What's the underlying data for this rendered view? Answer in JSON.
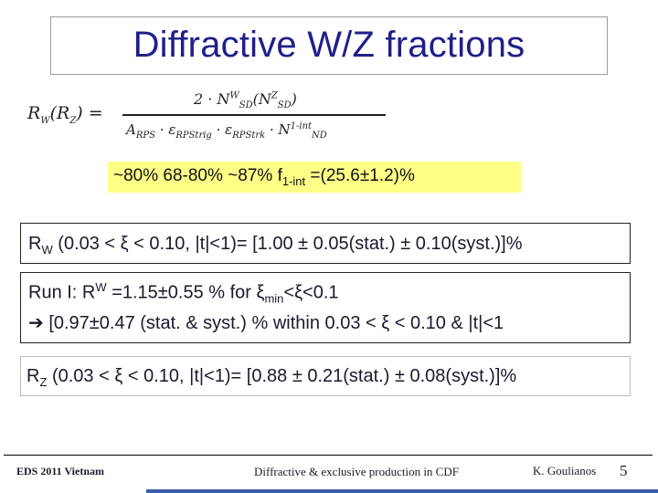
{
  "title": "Diffractive W/Z fractions",
  "formula": {
    "lhs": "R",
    "lhs_sub_w": "W",
    "lhs_sub_z": "Z",
    "numerator_prefix": "2 · N",
    "numerator_sup_w": "W",
    "numerator_sub": "SD",
    "numerator_sup_z": "Z",
    "numerator_sub2": "SD",
    "den_a": "A",
    "den_a_sub": "RPS",
    "den_e1": "· ε",
    "den_e1_sub": "RPStrig",
    "den_e2": "· ε",
    "den_e2_sub": "RPStrk",
    "den_n": "· N",
    "den_n_sup": "1-int",
    "den_n_sub": "ND"
  },
  "efficiencies": {
    "text1": "~80%  68-80%  ~87%  f",
    "sub": "1-int",
    "text2": " =(25.6±1.2)%"
  },
  "box1": {
    "prefix": "R",
    "sub": "W",
    "text": " (0.03 < ξ < 0.10, |t|<1)= [1.00 ± 0.05(stat.) ± 0.10(syst.)]%"
  },
  "box2": {
    "line1_prefix": "Run I: R",
    "line1_sup": "W",
    "line1_mid": " =1.15±0.55 % for ξ",
    "line1_sub": "min",
    "line1_end": "<ξ<0.1",
    "line2_arrow": "➔",
    "line2_text": " [0.97±0.47 (stat. & syst.) % within 0.03 < ξ < 0.10 & |t|<1"
  },
  "box3": {
    "prefix": "R",
    "sub": "Z",
    "text": " (0.03 < ξ < 0.10, |t|<1)= [0.88 ± 0.21(stat.) ± 0.08(syst.)]%"
  },
  "footer": {
    "left": "EDS 2011 Vietnam",
    "center": "Diffractive & exclusive production in CDF",
    "author": "K. Goulianos",
    "page": "5"
  },
  "colors": {
    "title": "#1f1f8a",
    "highlight": "#ffff88",
    "strip": "#3a5fa8"
  }
}
